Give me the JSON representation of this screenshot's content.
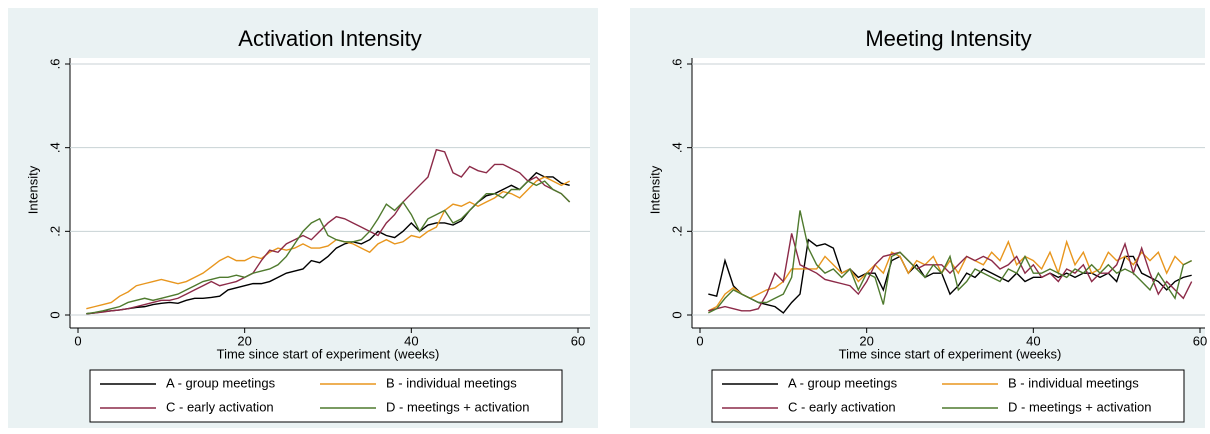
{
  "chart_data": [
    {
      "type": "line",
      "title": "Activation Intensity",
      "y_label": "Intensity",
      "x_label": "Time since start of experiment (weeks)",
      "x": [
        1,
        2,
        3,
        4,
        5,
        6,
        7,
        8,
        9,
        10,
        11,
        12,
        13,
        14,
        15,
        16,
        17,
        18,
        19,
        20,
        21,
        22,
        23,
        24,
        25,
        26,
        27,
        28,
        29,
        30,
        31,
        32,
        33,
        34,
        35,
        36,
        37,
        38,
        39,
        40,
        41,
        42,
        43,
        44,
        45,
        46,
        47,
        48,
        49,
        50,
        51,
        52,
        53,
        54,
        55,
        56,
        57,
        58,
        59
      ],
      "xlim": [
        0,
        60
      ],
      "xticks": [
        0,
        20,
        40,
        60
      ],
      "ylim": [
        0,
        0.6
      ],
      "yticks": [
        0,
        {
          "value": 0.2,
          "label": ".2"
        },
        {
          "value": 0.4,
          "label": ".4"
        },
        {
          "value": 0.6,
          "label": ".6"
        }
      ],
      "grid": true,
      "legend": "bottom",
      "series": [
        {
          "name": "A - group meetings",
          "color": "#000000",
          "values": [
            0.003,
            0.005,
            0.008,
            0.01,
            0.012,
            0.015,
            0.018,
            0.02,
            0.025,
            0.028,
            0.03,
            0.028,
            0.035,
            0.04,
            0.04,
            0.042,
            0.045,
            0.06,
            0.065,
            0.07,
            0.075,
            0.075,
            0.08,
            0.09,
            0.1,
            0.105,
            0.11,
            0.13,
            0.125,
            0.14,
            0.16,
            0.17,
            0.175,
            0.17,
            0.18,
            0.2,
            0.19,
            0.185,
            0.2,
            0.22,
            0.2,
            0.215,
            0.22,
            0.22,
            0.215,
            0.225,
            0.25,
            0.27,
            0.285,
            0.29,
            0.3,
            0.31,
            0.3,
            0.32,
            0.34,
            0.33,
            0.33,
            0.315,
            0.31
          ]
        },
        {
          "name": "B - individual meetings",
          "color": "#e8961e",
          "values": [
            0.015,
            0.02,
            0.025,
            0.03,
            0.045,
            0.055,
            0.07,
            0.075,
            0.08,
            0.085,
            0.08,
            0.075,
            0.08,
            0.09,
            0.1,
            0.115,
            0.13,
            0.14,
            0.13,
            0.13,
            0.14,
            0.135,
            0.15,
            0.16,
            0.155,
            0.16,
            0.17,
            0.16,
            0.16,
            0.165,
            0.18,
            0.175,
            0.17,
            0.16,
            0.15,
            0.17,
            0.18,
            0.17,
            0.175,
            0.19,
            0.185,
            0.2,
            0.21,
            0.25,
            0.265,
            0.26,
            0.27,
            0.26,
            0.27,
            0.28,
            0.295,
            0.29,
            0.28,
            0.3,
            0.32,
            0.33,
            0.32,
            0.31,
            0.32
          ]
        },
        {
          "name": "C - early activation",
          "color": "#8c2a48",
          "values": [
            0.003,
            0.005,
            0.007,
            0.01,
            0.012,
            0.015,
            0.02,
            0.025,
            0.03,
            0.035,
            0.035,
            0.04,
            0.05,
            0.06,
            0.07,
            0.08,
            0.07,
            0.075,
            0.08,
            0.09,
            0.1,
            0.13,
            0.155,
            0.15,
            0.17,
            0.18,
            0.19,
            0.18,
            0.2,
            0.22,
            0.235,
            0.23,
            0.22,
            0.21,
            0.2,
            0.19,
            0.22,
            0.24,
            0.27,
            0.29,
            0.31,
            0.33,
            0.395,
            0.39,
            0.34,
            0.33,
            0.355,
            0.345,
            0.34,
            0.36,
            0.36,
            0.35,
            0.34,
            0.32,
            0.33,
            0.31,
            0.3,
            0.29,
            0.27
          ]
        },
        {
          "name": "D - meetings + activation",
          "color": "#4f7a2e",
          "values": [
            0.003,
            0.006,
            0.01,
            0.015,
            0.02,
            0.03,
            0.035,
            0.04,
            0.035,
            0.04,
            0.045,
            0.05,
            0.06,
            0.07,
            0.08,
            0.085,
            0.09,
            0.09,
            0.095,
            0.09,
            0.1,
            0.105,
            0.11,
            0.12,
            0.14,
            0.17,
            0.2,
            0.22,
            0.23,
            0.19,
            0.18,
            0.175,
            0.175,
            0.18,
            0.2,
            0.23,
            0.265,
            0.25,
            0.27,
            0.24,
            0.2,
            0.23,
            0.24,
            0.25,
            0.22,
            0.23,
            0.25,
            0.27,
            0.29,
            0.29,
            0.28,
            0.3,
            0.3,
            0.32,
            0.31,
            0.32,
            0.3,
            0.29,
            0.27
          ]
        }
      ]
    },
    {
      "type": "line",
      "title": "Meeting Intensity",
      "y_label": "Intensity",
      "x_label": "Time since start of experiment (weeks)",
      "x": [
        1,
        2,
        3,
        4,
        5,
        6,
        7,
        8,
        9,
        10,
        11,
        12,
        13,
        14,
        15,
        16,
        17,
        18,
        19,
        20,
        21,
        22,
        23,
        24,
        25,
        26,
        27,
        28,
        29,
        30,
        31,
        32,
        33,
        34,
        35,
        36,
        37,
        38,
        39,
        40,
        41,
        42,
        43,
        44,
        45,
        46,
        47,
        48,
        49,
        50,
        51,
        52,
        53,
        54,
        55,
        56,
        57,
        58,
        59
      ],
      "xlim": [
        0,
        60
      ],
      "xticks": [
        0,
        20,
        40,
        60
      ],
      "ylim": [
        0,
        0.6
      ],
      "yticks": [
        0,
        {
          "value": 0.2,
          "label": ".2"
        },
        {
          "value": 0.4,
          "label": ".4"
        },
        {
          "value": 0.6,
          "label": ".6"
        }
      ],
      "grid": true,
      "legend": "bottom",
      "series": [
        {
          "name": "A - group meetings",
          "color": "#000000",
          "values": [
            0.05,
            0.045,
            0.13,
            0.07,
            0.05,
            0.04,
            0.03,
            0.025,
            0.02,
            0.005,
            0.03,
            0.05,
            0.18,
            0.165,
            0.17,
            0.16,
            0.1,
            0.11,
            0.09,
            0.1,
            0.1,
            0.06,
            0.13,
            0.14,
            0.1,
            0.12,
            0.09,
            0.1,
            0.1,
            0.05,
            0.07,
            0.1,
            0.09,
            0.11,
            0.1,
            0.09,
            0.08,
            0.1,
            0.08,
            0.09,
            0.09,
            0.1,
            0.09,
            0.1,
            0.09,
            0.1,
            0.1,
            0.09,
            0.1,
            0.08,
            0.14,
            0.14,
            0.1,
            0.09,
            0.08,
            0.06,
            0.08,
            0.09,
            0.095
          ]
        },
        {
          "name": "B - individual meetings",
          "color": "#e8961e",
          "values": [
            0.01,
            0.02,
            0.05,
            0.065,
            0.05,
            0.04,
            0.05,
            0.06,
            0.065,
            0.08,
            0.11,
            0.11,
            0.11,
            0.11,
            0.14,
            0.12,
            0.1,
            0.11,
            0.08,
            0.1,
            0.12,
            0.1,
            0.15,
            0.14,
            0.1,
            0.13,
            0.12,
            0.14,
            0.1,
            0.13,
            0.1,
            0.14,
            0.13,
            0.12,
            0.15,
            0.13,
            0.175,
            0.12,
            0.14,
            0.13,
            0.11,
            0.15,
            0.1,
            0.175,
            0.12,
            0.15,
            0.1,
            0.11,
            0.15,
            0.13,
            0.14,
            0.12,
            0.15,
            0.13,
            0.15,
            0.1,
            0.14,
            0.12,
            0.13
          ]
        },
        {
          "name": "C - early activation",
          "color": "#8c2a48",
          "values": [
            0.01,
            0.015,
            0.02,
            0.015,
            0.01,
            0.01,
            0.015,
            0.05,
            0.1,
            0.08,
            0.195,
            0.12,
            0.11,
            0.1,
            0.085,
            0.08,
            0.075,
            0.07,
            0.05,
            0.08,
            0.12,
            0.14,
            0.145,
            0.15,
            0.13,
            0.11,
            0.12,
            0.12,
            0.12,
            0.1,
            0.12,
            0.14,
            0.13,
            0.14,
            0.13,
            0.11,
            0.12,
            0.14,
            0.1,
            0.12,
            0.09,
            0.1,
            0.08,
            0.11,
            0.1,
            0.12,
            0.08,
            0.1,
            0.1,
            0.12,
            0.17,
            0.1,
            0.16,
            0.1,
            0.05,
            0.08,
            0.06,
            0.04,
            0.08
          ]
        },
        {
          "name": "D - meetings + activation",
          "color": "#4f7a2e",
          "values": [
            0.005,
            0.015,
            0.04,
            0.06,
            0.05,
            0.04,
            0.03,
            0.03,
            0.04,
            0.05,
            0.09,
            0.25,
            0.16,
            0.12,
            0.1,
            0.11,
            0.09,
            0.11,
            0.06,
            0.1,
            0.09,
            0.025,
            0.14,
            0.15,
            0.13,
            0.11,
            0.09,
            0.12,
            0.1,
            0.14,
            0.06,
            0.08,
            0.11,
            0.1,
            0.09,
            0.08,
            0.11,
            0.1,
            0.14,
            0.1,
            0.1,
            0.11,
            0.1,
            0.09,
            0.11,
            0.1,
            0.12,
            0.1,
            0.12,
            0.1,
            0.11,
            0.1,
            0.08,
            0.06,
            0.1,
            0.07,
            0.04,
            0.12,
            0.13
          ]
        }
      ]
    }
  ]
}
